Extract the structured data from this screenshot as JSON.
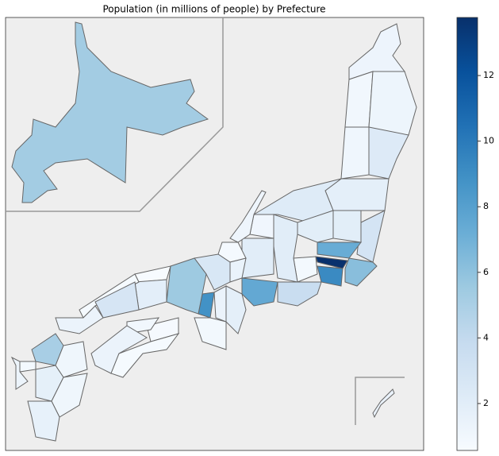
{
  "chart_data": {
    "type": "choropleth",
    "title": "Population (in millions of people) by Prefecture",
    "values": [
      5.3,
      1.25,
      0.97,
      1.2,
      1.07,
      2.3,
      1.85,
      2.2,
      2.9,
      1.95,
      1.95,
      7.3,
      13.7,
      6.2,
      9.2,
      0.82,
      2.05,
      3.65,
      7.5,
      2.0,
      1.05,
      1.15,
      0.77,
      1.4,
      1.8,
      2.6,
      8.8,
      1.35,
      0.93,
      5.5,
      0.57,
      1.9,
      0.67,
      2.8,
      1.35,
      0.73,
      0.95,
      1.35,
      0.7,
      5.1,
      0.82,
      1.3,
      1.13,
      1.75,
      1.1,
      1.6,
      1.45
    ],
    "colormap": [
      "#f7fbff",
      "#deebf7",
      "#c6dbef",
      "#9ecae1",
      "#6baed6",
      "#4292c6",
      "#2171b5",
      "#08519c",
      "#08306b"
    ],
    "clim": [
      0.57,
      13.77
    ],
    "cticks": [
      2,
      4,
      6,
      8,
      10,
      12
    ]
  }
}
